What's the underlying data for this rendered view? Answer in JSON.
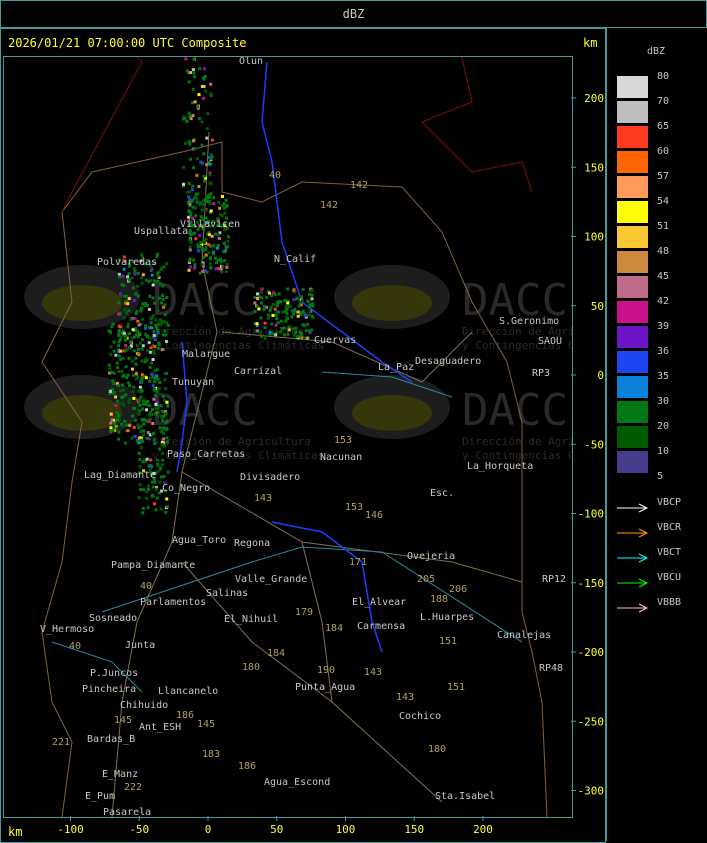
{
  "header": {
    "title": "dBZ"
  },
  "map": {
    "title": "2026/01/21 07:00:00 UTC Composite",
    "unit_top": "km",
    "unit_bottom": "km",
    "x_ticks": [
      "-100",
      "-50",
      "0",
      "50",
      "100",
      "150",
      "200"
    ],
    "y_ticks": [
      "200",
      "150",
      "100",
      "50",
      "0",
      "-50",
      "-100",
      "-150",
      "-200",
      "-250",
      "-300"
    ],
    "watermark": "DACC",
    "watermark_sub1": "Dirección de Agricultura",
    "watermark_sub2": "y Contingencias Climáticas",
    "places": [
      "Olun",
      "SANU",
      "Uspallata",
      "Villavicen",
      "Polvaredas",
      "N_Calif",
      "S.Geronimo",
      "Desaguadero",
      "La_Paz",
      "Nacunan",
      "La_Horqueta",
      "Paso_Carretas",
      "Lag_Diamante",
      "Co_Negro",
      "Divisadero",
      "Esc.",
      "Agua_Toro",
      "Regona",
      "Ovejeria",
      "Pampa_Diamante",
      "Valle_Grande",
      "Salinas",
      "Sosneado",
      "Parlamentos",
      "V_Hermoso",
      "El_Nihuil",
      "El_Alvear",
      "L.Huarpes",
      "Carmensa",
      "Canalejas",
      "Junta",
      "P.Juncos",
      "Pincheira",
      "Llancanelo",
      "Chihuido",
      "Ant_ESH",
      "Punta_Agua",
      "Cochico",
      "Bardas_B",
      "E_Manz",
      "E_Pum",
      "Pasarela",
      "Agua_Escond",
      "Sta.Isabel",
      "Tunuyan",
      "Carrizal",
      "Cuervas",
      "SAOU",
      "RP3",
      "RP12",
      "RP48",
      "Malargue"
    ],
    "route_numbers": [
      "40",
      "142",
      "142",
      "153",
      "153",
      "143",
      "146",
      "171",
      "205",
      "206",
      "188",
      "151",
      "151",
      "179",
      "184",
      "184",
      "190",
      "143",
      "143",
      "180",
      "180",
      "186",
      "183",
      "145",
      "221",
      "222",
      "40",
      "40",
      "186",
      "145"
    ]
  },
  "legend": {
    "unit": "dBZ",
    "scale": [
      {
        "label": "80",
        "color": "#d8d8d8"
      },
      {
        "label": "70",
        "color": "#bebebe"
      },
      {
        "label": "65",
        "color": "#ff3a1e"
      },
      {
        "label": "60",
        "color": "#ff6400"
      },
      {
        "label": "57",
        "color": "#ff9a5a"
      },
      {
        "label": "54",
        "color": "#ffff00"
      },
      {
        "label": "51",
        "color": "#fac832"
      },
      {
        "label": "48",
        "color": "#cd8a3e"
      },
      {
        "label": "45",
        "color": "#c06a8a"
      },
      {
        "label": "42",
        "color": "#c8128c"
      },
      {
        "label": "39",
        "color": "#6e14c8"
      },
      {
        "label": "36",
        "color": "#1e46f0"
      },
      {
        "label": "35",
        "color": "#0a82dc"
      },
      {
        "label": "30",
        "color": "#007814"
      },
      {
        "label": "20",
        "color": "#005a00"
      },
      {
        "label": "10",
        "color": "#463c8c"
      },
      {
        "label": "5",
        "color": ""
      }
    ],
    "radars": [
      {
        "label": "VBCP",
        "color": "#ffffff"
      },
      {
        "label": "VBCR",
        "color": "#ffa000"
      },
      {
        "label": "VBCT",
        "color": "#00ffff"
      },
      {
        "label": "VBCU",
        "color": "#00ff00"
      },
      {
        "label": "VBBB",
        "color": "#ffc0cb"
      }
    ]
  }
}
